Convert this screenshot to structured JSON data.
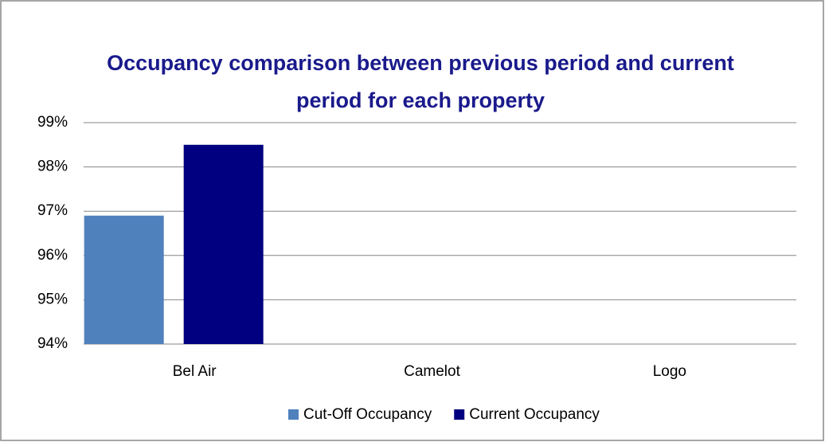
{
  "chart_data": {
    "type": "bar",
    "title": "Occupancy comparison between previous period and current period for each property",
    "categories": [
      "Bel Air",
      "Camelot",
      "Logo"
    ],
    "series": [
      {
        "name": "Cut-Off Occupancy",
        "color": "#4f81bd",
        "values": [
          96.9,
          null,
          null
        ]
      },
      {
        "name": "Current Occupancy",
        "color": "#000080",
        "values": [
          98.5,
          null,
          null
        ]
      }
    ],
    "ylim": [
      94,
      99
    ],
    "yticks": [
      {
        "value": 94,
        "label": "94%"
      },
      {
        "value": 95,
        "label": "95%"
      },
      {
        "value": 96,
        "label": "96%"
      },
      {
        "value": 97,
        "label": "97%"
      },
      {
        "value": 98,
        "label": "98%"
      },
      {
        "value": 99,
        "label": "99%"
      }
    ],
    "grid": true,
    "legend": "bottom"
  }
}
